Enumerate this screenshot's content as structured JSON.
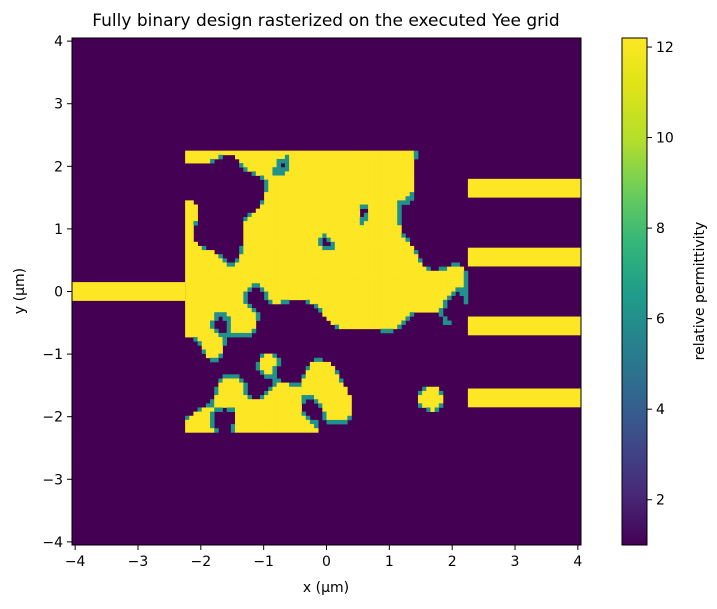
{
  "chart_data": {
    "type": "heatmap",
    "title": "Fully binary design rasterized on the executed Yee grid",
    "xlabel": "x (µm)",
    "ylabel": "y (µm)",
    "xlim": [
      -4.05,
      4.05
    ],
    "ylim": [
      -4.05,
      4.05
    ],
    "x_ticks": [
      -4,
      -3,
      -2,
      -1,
      0,
      1,
      2,
      3,
      4
    ],
    "y_ticks": [
      -4,
      -3,
      -2,
      -1,
      0,
      1,
      2,
      3,
      4
    ],
    "x_tick_labels": [
      "−4",
      "−3",
      "−2",
      "−1",
      "0",
      "1",
      "2",
      "3",
      "4"
    ],
    "y_tick_labels": [
      "−4",
      "−3",
      "−2",
      "−1",
      "0",
      "1",
      "2",
      "3",
      "4"
    ],
    "colorbar": {
      "label": "relative permittivity",
      "range": [
        1.0,
        12.2
      ],
      "ticks": [
        2,
        4,
        6,
        8,
        10,
        12
      ],
      "tick_labels": [
        "2",
        "4",
        "6",
        "8",
        "10",
        "12"
      ],
      "colormap": "viridis"
    },
    "permittivity": {
      "background": 1.0,
      "core": 12.2
    },
    "design_region": {
      "x": [
        -2.25,
        2.25
      ],
      "y": [
        -2.25,
        2.25
      ]
    },
    "input_waveguide": {
      "x": [
        -4.05,
        -2.25
      ],
      "y": [
        -0.15,
        0.15
      ]
    },
    "output_waveguides": [
      {
        "x": [
          2.25,
          4.05
        ],
        "y": [
          1.5,
          1.8
        ]
      },
      {
        "x": [
          2.25,
          4.05
        ],
        "y": [
          0.4,
          0.7
        ]
      },
      {
        "x": [
          2.25,
          4.05
        ],
        "y": [
          -0.7,
          -0.4
        ]
      },
      {
        "x": [
          2.25,
          4.05
        ],
        "y": [
          -1.85,
          -1.55
        ]
      }
    ],
    "grid": false
  },
  "colors": {
    "low": "#440154",
    "high": "#fde725",
    "edge": "#21918c"
  }
}
